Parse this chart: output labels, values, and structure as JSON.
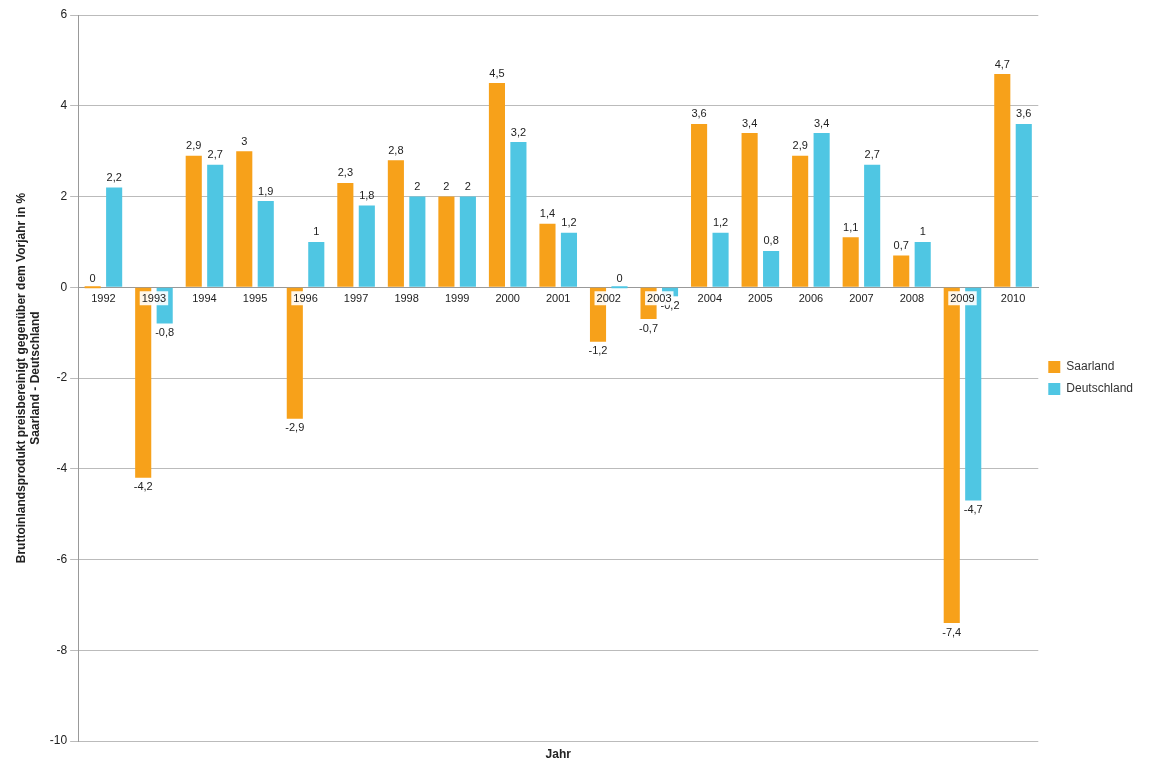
{
  "chart_data": {
    "type": "bar",
    "xlabel": "Jahr",
    "ylabel": "Bruttoinlandsprodukt preisbereinigt gegenüber dem Vorjahr in %\nSaarland - Deutschland",
    "categories": [
      "1992",
      "1993",
      "1994",
      "1995",
      "1996",
      "1997",
      "1998",
      "1999",
      "2000",
      "2001",
      "2002",
      "2003",
      "2004",
      "2005",
      "2006",
      "2007",
      "2008",
      "2009",
      "2010"
    ],
    "series": [
      {
        "name": "Saarland",
        "color": "#f7a11a",
        "values": [
          0,
          -4.2,
          2.9,
          3,
          -2.9,
          2.3,
          2.8,
          2,
          4.5,
          1.4,
          -1.2,
          -0.7,
          3.6,
          3.4,
          2.9,
          1.1,
          0.7,
          -7.4,
          4.7
        ],
        "value_labels": [
          "0",
          "-4,2",
          "2,9",
          "3",
          "-2,9",
          "2,3",
          "2,8",
          "2",
          "4,5",
          "1,4",
          "-1,2",
          "-0,7",
          "3,6",
          "3,4",
          "2,9",
          "1,1",
          "0,7",
          "-7,4",
          "4,7"
        ]
      },
      {
        "name": "Deutschland",
        "color": "#4fc6e3",
        "values": [
          2.2,
          -0.8,
          2.7,
          1.9,
          1,
          1.8,
          2,
          2,
          3.2,
          1.2,
          0,
          -0.2,
          1.2,
          0.8,
          3.4,
          2.7,
          1,
          -4.7,
          3.6
        ],
        "value_labels": [
          "2,2",
          "-0,8",
          "2,7",
          "1,9",
          "1",
          "1,8",
          "2",
          "2",
          "3,2",
          "1,2",
          "0",
          "-0,2",
          "1,2",
          "0,8",
          "3,4",
          "2,7",
          "1",
          "-4,7",
          "3,6"
        ]
      }
    ],
    "ylim": [
      -10,
      6
    ],
    "yticks": [
      -10,
      -8,
      -6,
      -4,
      -2,
      0,
      2,
      4,
      6
    ],
    "grid": "y",
    "legend": "right"
  }
}
